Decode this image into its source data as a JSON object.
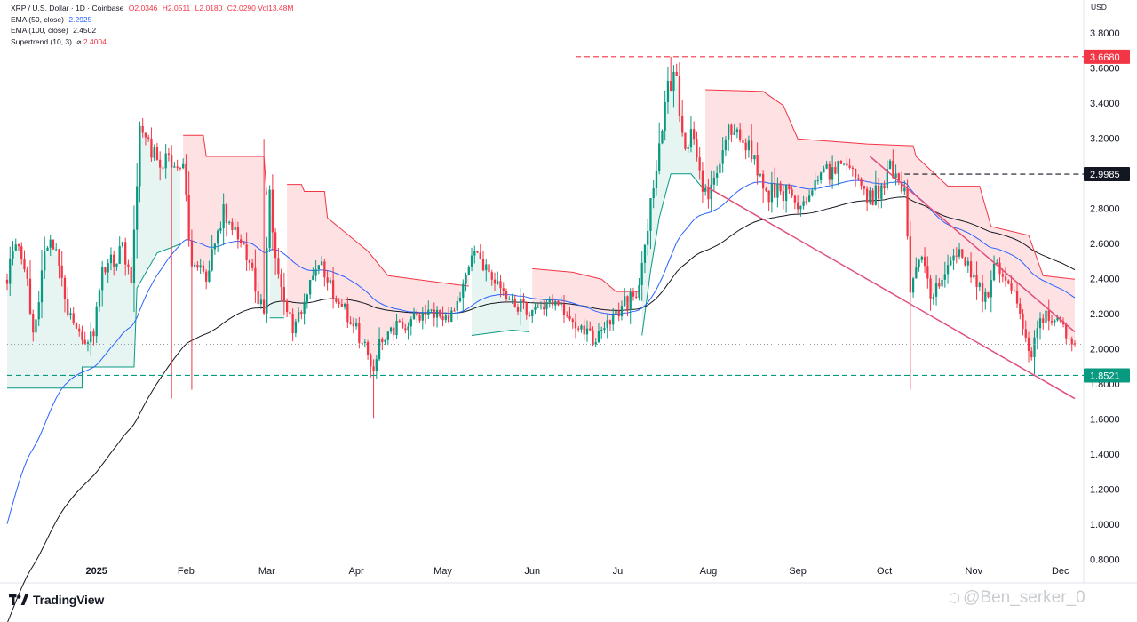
{
  "legend": {
    "symbol": "XRP / U.S. Dollar · 1D · Coinbase",
    "open": "O2.0346",
    "high": "H2.0511",
    "low": "L2.0180",
    "close": "C2.0290",
    "volume": "Vol13.48M",
    "ema50_label": "EMA (50, close)",
    "ema50_value": "2.2925",
    "ema100_label": "EMA (100, close)",
    "ema100_value": "2.4502",
    "supertrend_label": "Supertrend (10, 3)",
    "supertrend_symbol": "⌀",
    "supertrend_value": "2.4004"
  },
  "currency": "USD",
  "branding": {
    "name": "TradingView",
    "watermark": "@Ben_serker_0"
  },
  "colors": {
    "up": "#089981",
    "down": "#f23645",
    "ema50": "#2962ff",
    "ema100": "#131722",
    "supertrend_down": "#f23645",
    "supertrend_up": "#089981",
    "resistance": "#f23645",
    "support": "#089981",
    "wedge": "#e0507a"
  },
  "chart_data": {
    "type": "candlestick",
    "title": "XRP / U.S. Dollar · 1D · Coinbase",
    "y_axis": {
      "unit": "USD",
      "range": [
        0.7,
        3.9
      ],
      "ticks": [
        "3.8000",
        "3.6000",
        "3.4000",
        "3.2000",
        "3.0000",
        "2.8000",
        "2.6000",
        "2.4000",
        "2.2000",
        "2.0000",
        "1.8000",
        "1.6000",
        "1.4000",
        "1.2000",
        "1.0000",
        "0.8000"
      ]
    },
    "x_axis": {
      "start": "2024-12-01",
      "end": "2025-12-06",
      "labels": [
        {
          "date": "2025-01-01",
          "text": "2025",
          "bold": true
        },
        {
          "date": "2025-02-01",
          "text": "Feb"
        },
        {
          "date": "2025-03-01",
          "text": "Mar"
        },
        {
          "date": "2025-04-01",
          "text": "Apr"
        },
        {
          "date": "2025-05-01",
          "text": "May"
        },
        {
          "date": "2025-06-01",
          "text": "Jun"
        },
        {
          "date": "2025-07-01",
          "text": "Jul"
        },
        {
          "date": "2025-08-01",
          "text": "Aug"
        },
        {
          "date": "2025-09-01",
          "text": "Sep"
        },
        {
          "date": "2025-10-01",
          "text": "Oct"
        },
        {
          "date": "2025-11-01",
          "text": "Nov"
        },
        {
          "date": "2025-12-01",
          "text": "Dec"
        }
      ]
    },
    "last_price": 2.029,
    "price_lines": [
      {
        "value": 3.668,
        "label": "3.6680",
        "color": "#f23645",
        "start": "2025-06-16",
        "end": "2025-12-06"
      },
      {
        "value": 2.9985,
        "label": "2.9985",
        "color": "#131722",
        "start": "2025-10-08",
        "end": "2025-12-06"
      },
      {
        "value": 1.8521,
        "label": "1.8521",
        "color": "#089981",
        "start": "2024-12-01",
        "end": "2025-12-06"
      }
    ],
    "trendlines": [
      {
        "name": "falling-wedge-upper",
        "points": [
          {
            "date": "2025-09-26",
            "value": 3.1
          },
          {
            "date": "2025-12-06",
            "value": 2.1
          }
        ]
      },
      {
        "name": "falling-wedge-lower",
        "points": [
          {
            "date": "2025-07-31",
            "value": 2.93
          },
          {
            "date": "2025-12-06",
            "value": 1.72
          }
        ]
      }
    ],
    "supertrend": {
      "value": 2.4004,
      "segments": [
        {
          "dir": "up",
          "points": [
            [
              "2024-12-01",
              1.78
            ],
            [
              "2024-12-27",
              1.78
            ],
            [
              "2024-12-27",
              1.9
            ],
            [
              "2025-01-14",
              1.9
            ],
            [
              "2025-01-15",
              2.35
            ],
            [
              "2025-01-22",
              2.55
            ],
            [
              "2025-01-30",
              2.6
            ]
          ]
        },
        {
          "dir": "down",
          "points": [
            [
              "2025-01-31",
              3.22
            ],
            [
              "2025-02-07",
              3.22
            ],
            [
              "2025-02-08",
              3.1
            ],
            [
              "2025-02-28",
              3.1
            ],
            [
              "2025-03-01",
              2.88
            ]
          ]
        },
        {
          "dir": "up",
          "points": [
            [
              "2025-03-02",
              2.18
            ],
            [
              "2025-03-07",
              2.18
            ]
          ]
        },
        {
          "dir": "down",
          "points": [
            [
              "2025-03-08",
              2.94
            ],
            [
              "2025-03-13",
              2.94
            ],
            [
              "2025-03-14",
              2.9
            ],
            [
              "2025-03-21",
              2.9
            ],
            [
              "2025-03-22",
              2.75
            ],
            [
              "2025-04-05",
              2.56
            ],
            [
              "2025-04-12",
              2.42
            ],
            [
              "2025-05-10",
              2.36
            ]
          ]
        },
        {
          "dir": "up",
          "points": [
            [
              "2025-05-11",
              2.08
            ],
            [
              "2025-05-25",
              2.11
            ],
            [
              "2025-05-31",
              2.1
            ]
          ]
        },
        {
          "dir": "down",
          "points": [
            [
              "2025-06-01",
              2.46
            ],
            [
              "2025-06-15",
              2.44
            ],
            [
              "2025-06-25",
              2.4
            ],
            [
              "2025-06-30",
              2.33
            ],
            [
              "2025-07-08",
              2.33
            ]
          ]
        },
        {
          "dir": "up",
          "points": [
            [
              "2025-07-09",
              2.08
            ],
            [
              "2025-07-12",
              2.45
            ],
            [
              "2025-07-15",
              2.75
            ],
            [
              "2025-07-19",
              3.0
            ],
            [
              "2025-07-26",
              3.0
            ],
            [
              "2025-07-30",
              2.92
            ]
          ]
        },
        {
          "dir": "down",
          "points": [
            [
              "2025-07-31",
              3.48
            ],
            [
              "2025-08-20",
              3.47
            ],
            [
              "2025-08-27",
              3.39
            ],
            [
              "2025-09-01",
              3.2
            ],
            [
              "2025-09-25",
              3.17
            ],
            [
              "2025-10-11",
              3.16
            ],
            [
              "2025-10-12",
              3.1
            ],
            [
              "2025-10-23",
              2.93
            ],
            [
              "2025-11-03",
              2.93
            ],
            [
              "2025-11-07",
              2.7
            ],
            [
              "2025-11-20",
              2.65
            ],
            [
              "2025-11-25",
              2.42
            ],
            [
              "2025-12-06",
              2.4
            ]
          ]
        }
      ]
    },
    "anchors": [
      {
        "date": "2024-12-01",
        "value": 2.36
      },
      {
        "date": "2024-12-03",
        "value": 2.6
      },
      {
        "date": "2024-12-07",
        "value": 2.5
      },
      {
        "date": "2024-12-10",
        "value": 2.06
      },
      {
        "date": "2024-12-14",
        "value": 2.55
      },
      {
        "date": "2024-12-17",
        "value": 2.6
      },
      {
        "date": "2024-12-22",
        "value": 2.22
      },
      {
        "date": "2024-12-27",
        "value": 2.06
      },
      {
        "date": "2024-12-31",
        "value": 2.1
      },
      {
        "date": "2025-01-03",
        "value": 2.44
      },
      {
        "date": "2025-01-10",
        "value": 2.57
      },
      {
        "date": "2025-01-13",
        "value": 2.4
      },
      {
        "date": "2025-01-16",
        "value": 3.25
      },
      {
        "date": "2025-01-21",
        "value": 3.12
      },
      {
        "date": "2025-01-27",
        "value": 3.05
      },
      {
        "date": "2025-01-31",
        "value": 3.05
      },
      {
        "date": "2025-02-03",
        "value": 2.45
      },
      {
        "date": "2025-02-08",
        "value": 2.42
      },
      {
        "date": "2025-02-14",
        "value": 2.78
      },
      {
        "date": "2025-02-21",
        "value": 2.62
      },
      {
        "date": "2025-02-28",
        "value": 2.18
      },
      {
        "date": "2025-03-02",
        "value": 2.9
      },
      {
        "date": "2025-03-04",
        "value": 2.5
      },
      {
        "date": "2025-03-10",
        "value": 2.1
      },
      {
        "date": "2025-03-19",
        "value": 2.5
      },
      {
        "date": "2025-03-22",
        "value": 2.38
      },
      {
        "date": "2025-03-28",
        "value": 2.23
      },
      {
        "date": "2025-04-03",
        "value": 2.05
      },
      {
        "date": "2025-04-07",
        "value": 1.86
      },
      {
        "date": "2025-04-09",
        "value": 2.05
      },
      {
        "date": "2025-04-12",
        "value": 2.1
      },
      {
        "date": "2025-04-22",
        "value": 2.18
      },
      {
        "date": "2025-04-25",
        "value": 2.22
      },
      {
        "date": "2025-05-03",
        "value": 2.18
      },
      {
        "date": "2025-05-08",
        "value": 2.35
      },
      {
        "date": "2025-05-12",
        "value": 2.55
      },
      {
        "date": "2025-05-20",
        "value": 2.38
      },
      {
        "date": "2025-05-27",
        "value": 2.25
      },
      {
        "date": "2025-06-02",
        "value": 2.22
      },
      {
        "date": "2025-06-08",
        "value": 2.28
      },
      {
        "date": "2025-06-15",
        "value": 2.18
      },
      {
        "date": "2025-06-22",
        "value": 2.05
      },
      {
        "date": "2025-06-26",
        "value": 2.1
      },
      {
        "date": "2025-07-02",
        "value": 2.25
      },
      {
        "date": "2025-07-07",
        "value": 2.3
      },
      {
        "date": "2025-07-12",
        "value": 2.82
      },
      {
        "date": "2025-07-18",
        "value": 3.5
      },
      {
        "date": "2025-07-21",
        "value": 3.55
      },
      {
        "date": "2025-07-23",
        "value": 3.2
      },
      {
        "date": "2025-07-27",
        "value": 3.2
      },
      {
        "date": "2025-08-01",
        "value": 2.8
      },
      {
        "date": "2025-08-04",
        "value": 3.05
      },
      {
        "date": "2025-08-08",
        "value": 3.3
      },
      {
        "date": "2025-08-13",
        "value": 3.2
      },
      {
        "date": "2025-08-18",
        "value": 3.05
      },
      {
        "date": "2025-08-22",
        "value": 2.9
      },
      {
        "date": "2025-08-28",
        "value": 2.9
      },
      {
        "date": "2025-09-03",
        "value": 2.82
      },
      {
        "date": "2025-09-08",
        "value": 2.95
      },
      {
        "date": "2025-09-14",
        "value": 3.05
      },
      {
        "date": "2025-09-18",
        "value": 3.1
      },
      {
        "date": "2025-09-25",
        "value": 2.85
      },
      {
        "date": "2025-09-30",
        "value": 2.9
      },
      {
        "date": "2025-10-03",
        "value": 3.02
      },
      {
        "date": "2025-10-08",
        "value": 2.86
      },
      {
        "date": "2025-10-10",
        "value": 2.35
      },
      {
        "date": "2025-10-14",
        "value": 2.5
      },
      {
        "date": "2025-10-17",
        "value": 2.3
      },
      {
        "date": "2025-10-22",
        "value": 2.45
      },
      {
        "date": "2025-10-27",
        "value": 2.6
      },
      {
        "date": "2025-10-31",
        "value": 2.45
      },
      {
        "date": "2025-11-05",
        "value": 2.28
      },
      {
        "date": "2025-11-09",
        "value": 2.5
      },
      {
        "date": "2025-11-13",
        "value": 2.38
      },
      {
        "date": "2025-11-17",
        "value": 2.2
      },
      {
        "date": "2025-11-21",
        "value": 1.97
      },
      {
        "date": "2025-11-24",
        "value": 2.2
      },
      {
        "date": "2025-11-28",
        "value": 2.18
      },
      {
        "date": "2025-12-02",
        "value": 2.1
      },
      {
        "date": "2025-12-06",
        "value": 2.029
      }
    ],
    "wick_events": [
      {
        "date": "2025-01-27",
        "low": 1.72
      },
      {
        "date": "2025-02-03",
        "low": 1.77
      },
      {
        "date": "2025-02-28",
        "high": 3.2
      },
      {
        "date": "2025-04-07",
        "low": 1.61
      },
      {
        "date": "2025-07-19",
        "high": 3.668
      },
      {
        "date": "2025-10-10",
        "low": 1.77
      }
    ]
  }
}
